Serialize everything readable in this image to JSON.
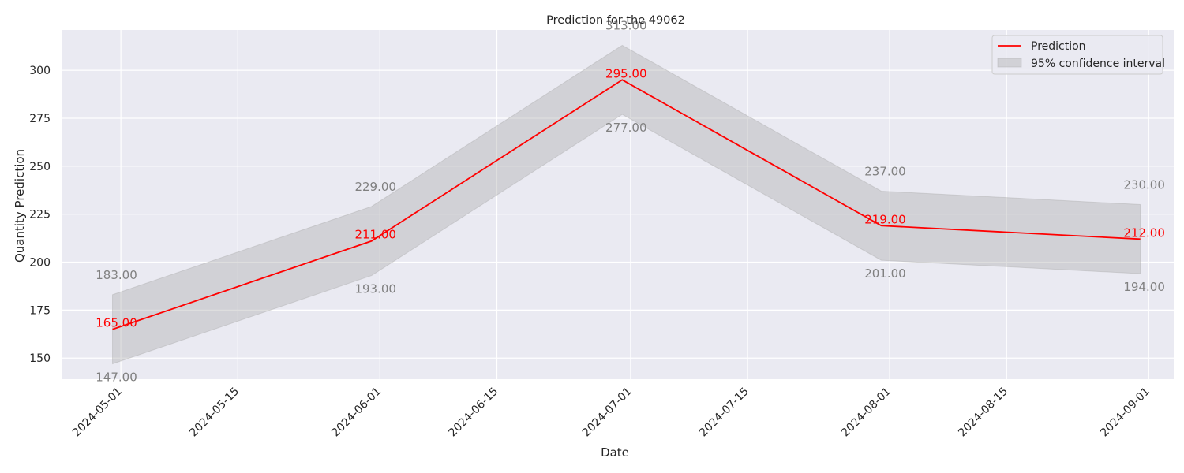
{
  "chart_data": {
    "type": "line",
    "title": "Prediction for the 49062",
    "xlabel": "Date",
    "ylabel": "Quantity Prediction",
    "x_axis_type": "date",
    "xlim": [
      "2024-04-24",
      "2024-09-04"
    ],
    "ylim": [
      139,
      321
    ],
    "x_ticks": [
      "2024-05-01",
      "2024-05-15",
      "2024-06-01",
      "2024-06-15",
      "2024-07-01",
      "2024-07-15",
      "2024-08-01",
      "2024-08-15",
      "2024-09-01"
    ],
    "y_ticks": [
      150,
      175,
      200,
      225,
      250,
      275,
      300
    ],
    "grid": true,
    "legend_position": "top-right",
    "series": [
      {
        "name": "Prediction",
        "kind": "line",
        "color": "#ff0000",
        "x": [
          "2024-04-30",
          "2024-05-31",
          "2024-06-30",
          "2024-07-31",
          "2024-08-31"
        ],
        "values": [
          165,
          211,
          295,
          219,
          212
        ],
        "value_labels": [
          "165.00",
          "211.00",
          "295.00",
          "219.00",
          "212.00"
        ]
      },
      {
        "name": "95% confidence interval",
        "kind": "band",
        "color": "#a9a9a9",
        "x": [
          "2024-04-30",
          "2024-05-31",
          "2024-06-30",
          "2024-07-31",
          "2024-08-31"
        ],
        "lower": [
          147,
          193,
          277,
          201,
          194
        ],
        "upper": [
          183,
          229,
          313,
          237,
          230
        ],
        "lower_labels": [
          "147.00",
          "193.00",
          "277.00",
          "201.00",
          "194.00"
        ],
        "upper_labels": [
          "183.00",
          "229.00",
          "313.00",
          "237.00",
          "230.00"
        ]
      }
    ]
  }
}
